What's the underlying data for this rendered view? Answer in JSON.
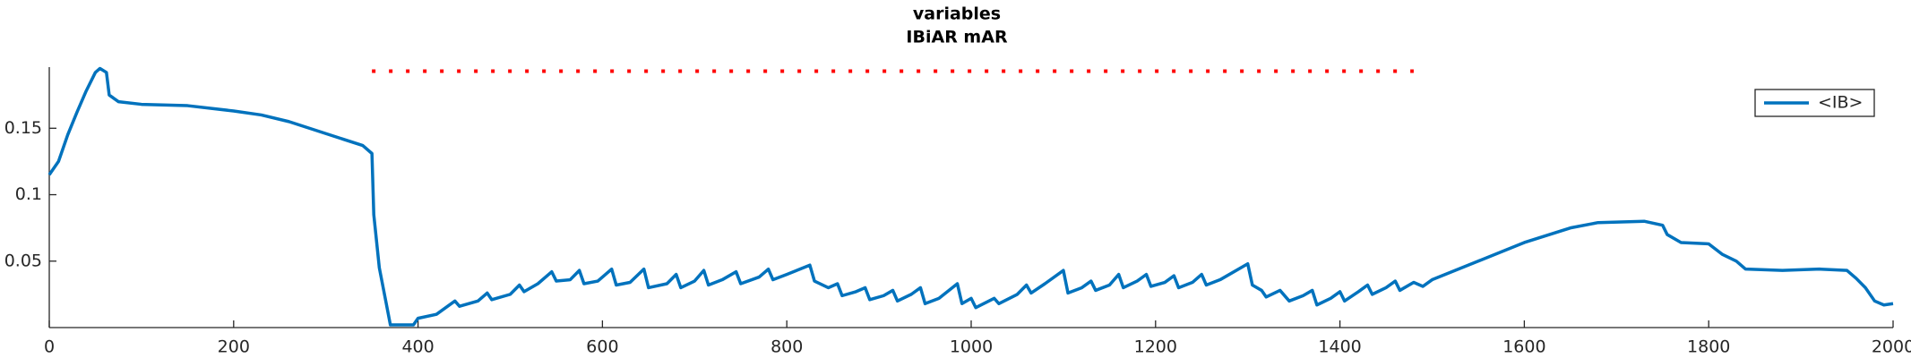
{
  "chart_data": {
    "type": "line",
    "title": [
      "variables",
      "IBiAR mAR"
    ],
    "series": [
      {
        "name": "<IB>",
        "color": "#0072bd",
        "line_style": "solid",
        "x": [
          0,
          10,
          20,
          30,
          40,
          50,
          55,
          62,
          65,
          75,
          100,
          150,
          200,
          230,
          260,
          300,
          340,
          350,
          352,
          358,
          365,
          370,
          395,
          400,
          420,
          440,
          445,
          465,
          475,
          480,
          500,
          510,
          515,
          530,
          545,
          550,
          565,
          575,
          580,
          595,
          610,
          615,
          630,
          645,
          650,
          670,
          680,
          685,
          700,
          710,
          715,
          730,
          745,
          750,
          770,
          780,
          785,
          800,
          825,
          830,
          845,
          855,
          860,
          875,
          885,
          890,
          905,
          915,
          920,
          935,
          945,
          950,
          965,
          985,
          990,
          1000,
          1005,
          1025,
          1030,
          1050,
          1060,
          1065,
          1080,
          1100,
          1105,
          1120,
          1130,
          1135,
          1150,
          1160,
          1165,
          1180,
          1190,
          1195,
          1210,
          1220,
          1225,
          1240,
          1250,
          1255,
          1270,
          1300,
          1305,
          1315,
          1320,
          1335,
          1345,
          1360,
          1370,
          1375,
          1390,
          1400,
          1405,
          1420,
          1430,
          1435,
          1450,
          1460,
          1465,
          1480,
          1490,
          1500,
          1550,
          1600,
          1650,
          1680,
          1730,
          1750,
          1755,
          1770,
          1800,
          1815,
          1830,
          1840,
          1880,
          1920,
          1950,
          1960,
          1970,
          1980,
          1990,
          2000
        ],
        "values": [
          0.115,
          0.125,
          0.145,
          0.162,
          0.178,
          0.192,
          0.195,
          0.192,
          0.175,
          0.17,
          0.168,
          0.167,
          0.163,
          0.16,
          0.155,
          0.146,
          0.137,
          0.131,
          0.085,
          0.045,
          0.02,
          0.002,
          0.002,
          0.007,
          0.01,
          0.02,
          0.016,
          0.02,
          0.026,
          0.021,
          0.025,
          0.032,
          0.027,
          0.033,
          0.042,
          0.035,
          0.036,
          0.043,
          0.033,
          0.035,
          0.044,
          0.032,
          0.034,
          0.044,
          0.03,
          0.033,
          0.04,
          0.03,
          0.035,
          0.043,
          0.032,
          0.036,
          0.042,
          0.033,
          0.038,
          0.044,
          0.036,
          0.04,
          0.047,
          0.035,
          0.03,
          0.033,
          0.024,
          0.027,
          0.03,
          0.021,
          0.024,
          0.028,
          0.02,
          0.025,
          0.03,
          0.018,
          0.022,
          0.033,
          0.018,
          0.022,
          0.015,
          0.022,
          0.018,
          0.025,
          0.032,
          0.026,
          0.033,
          0.043,
          0.026,
          0.03,
          0.035,
          0.028,
          0.032,
          0.04,
          0.03,
          0.035,
          0.04,
          0.031,
          0.034,
          0.039,
          0.03,
          0.034,
          0.04,
          0.032,
          0.036,
          0.048,
          0.032,
          0.028,
          0.023,
          0.028,
          0.02,
          0.024,
          0.028,
          0.017,
          0.022,
          0.027,
          0.02,
          0.027,
          0.032,
          0.025,
          0.03,
          0.035,
          0.028,
          0.034,
          0.031,
          0.036,
          0.05,
          0.064,
          0.075,
          0.079,
          0.08,
          0.077,
          0.07,
          0.064,
          0.063,
          0.055,
          0.05,
          0.044,
          0.043,
          0.044,
          0.043,
          0.037,
          0.03,
          0.02,
          0.017,
          0.018
        ]
      },
      {
        "color": "#ff0000",
        "line_style": "dotted",
        "x": [
          350,
          1480
        ],
        "values": [
          0.193,
          0.193
        ]
      }
    ],
    "xlim": [
      0,
      2000
    ],
    "xticks": [
      0,
      200,
      400,
      600,
      800,
      1000,
      1200,
      1400,
      1600,
      1800,
      2000
    ],
    "ylim": [
      0,
      0.196
    ],
    "yticks": [
      0.05,
      0.1,
      0.15
    ],
    "grid": false,
    "legend": "northeast"
  }
}
